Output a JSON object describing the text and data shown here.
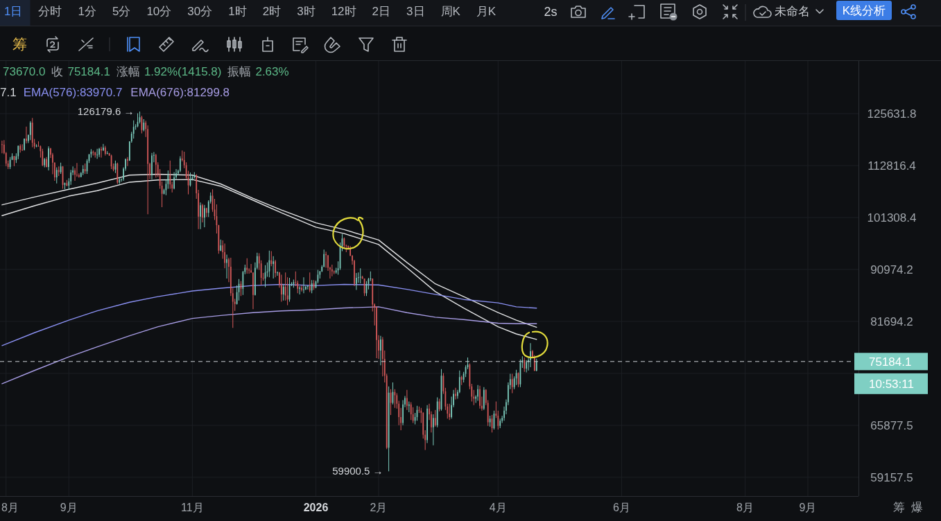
{
  "chart_data": {
    "type": "candlestick",
    "xlim": [
      "2025-07-29",
      "2026-09-26"
    ],
    "ylim": [
      56900,
      140100
    ],
    "log": "y",
    "grid": true,
    "legend": "top left",
    "xticks": [
      {
        "value": "2025-08-01",
        "label": "8月"
      },
      {
        "value": "2025-09-01",
        "label": "9月"
      },
      {
        "value": "2025-11-01",
        "label": "11月"
      },
      {
        "value": "2026-01-01",
        "label": "2026"
      },
      {
        "value": "2026-02-01",
        "label": "2月"
      },
      {
        "value": "2026-04-01",
        "label": "4月"
      },
      {
        "value": "2026-06-01",
        "label": "6月"
      },
      {
        "value": "2026-08-01",
        "label": "8月"
      },
      {
        "value": "2026-09-01",
        "label": "9月"
      }
    ],
    "yticks": [
      59157.5,
      65877.5,
      {
        "value": 73361.3,
        "label": null
      },
      81694.2,
      90974.2,
      101308.4,
      112816.4,
      125631.8
    ],
    "x": [
      "2025-07-30",
      "2025-07-31",
      "2025-08-01",
      "2025-08-02",
      "2025-08-03",
      "2025-08-04",
      "2025-08-05",
      "2025-08-06",
      "2025-08-07",
      "2025-08-08",
      "2025-08-09",
      "2025-08-10",
      "2025-08-11",
      "2025-08-12",
      "2025-08-13",
      "2025-08-14",
      "2025-08-15",
      "2025-08-16",
      "2025-08-17",
      "2025-08-18",
      "2025-08-19",
      "2025-08-20",
      "2025-08-21",
      "2025-08-22",
      "2025-08-23",
      "2025-08-24",
      "2025-08-25",
      "2025-08-26",
      "2025-08-27",
      "2025-08-28",
      "2025-08-29",
      "2025-08-30",
      "2025-08-31",
      "2025-09-01",
      "2025-09-02",
      "2025-09-03",
      "2025-09-04",
      "2025-09-05",
      "2025-09-06",
      "2025-09-07",
      "2025-09-08",
      "2025-09-09",
      "2025-09-10",
      "2025-09-11",
      "2025-09-12",
      "2025-09-13",
      "2025-09-14",
      "2025-09-15",
      "2025-09-16",
      "2025-09-17",
      "2025-09-18",
      "2025-09-19",
      "2025-09-20",
      "2025-09-21",
      "2025-09-22",
      "2025-09-23",
      "2025-09-24",
      "2025-09-25",
      "2025-09-26",
      "2025-09-27",
      "2025-09-28",
      "2025-09-29",
      "2025-09-30",
      "2025-10-01",
      "2025-10-02",
      "2025-10-03",
      "2025-10-04",
      "2025-10-05",
      "2025-10-06",
      "2025-10-07",
      "2025-10-08",
      "2025-10-09",
      "2025-10-10",
      "2025-10-11",
      "2025-10-12",
      "2025-10-13",
      "2025-10-14",
      "2025-10-15",
      "2025-10-16",
      "2025-10-17",
      "2025-10-18",
      "2025-10-19",
      "2025-10-20",
      "2025-10-21",
      "2025-10-22",
      "2025-10-23",
      "2025-10-24",
      "2025-10-25",
      "2025-10-26",
      "2025-10-27",
      "2025-10-28",
      "2025-10-29",
      "2025-10-30",
      "2025-10-31",
      "2025-11-01",
      "2025-11-02",
      "2025-11-03",
      "2025-11-04",
      "2025-11-05",
      "2025-11-06",
      "2025-11-07",
      "2025-11-08",
      "2025-11-09",
      "2025-11-10",
      "2025-11-11",
      "2025-11-12",
      "2025-11-13",
      "2025-11-14",
      "2025-11-15",
      "2025-11-16",
      "2025-11-17",
      "2025-11-18",
      "2025-11-19",
      "2025-11-20",
      "2025-11-21",
      "2025-11-22",
      "2025-11-23",
      "2025-11-24",
      "2025-11-25",
      "2025-11-26",
      "2025-11-27",
      "2025-11-28",
      "2025-11-29",
      "2025-11-30",
      "2025-12-01",
      "2025-12-02",
      "2025-12-03",
      "2025-12-04",
      "2025-12-05",
      "2025-12-06",
      "2025-12-07",
      "2025-12-08",
      "2025-12-09",
      "2025-12-10",
      "2025-12-11",
      "2025-12-12",
      "2025-12-13",
      "2025-12-14",
      "2025-12-15",
      "2025-12-16",
      "2025-12-17",
      "2025-12-18",
      "2025-12-19",
      "2025-12-20",
      "2025-12-21",
      "2025-12-22",
      "2025-12-23",
      "2025-12-24",
      "2025-12-25",
      "2025-12-26",
      "2025-12-27",
      "2025-12-28",
      "2025-12-29",
      "2025-12-30",
      "2025-12-31",
      "2026-01-01",
      "2026-01-02",
      "2026-01-03",
      "2026-01-04",
      "2026-01-05",
      "2026-01-06",
      "2026-01-07",
      "2026-01-08",
      "2026-01-09",
      "2026-01-10",
      "2026-01-11",
      "2026-01-12",
      "2026-01-13",
      "2026-01-14",
      "2026-01-15",
      "2026-01-16",
      "2026-01-17",
      "2026-01-18",
      "2026-01-19",
      "2026-01-20",
      "2026-01-21",
      "2026-01-22",
      "2026-01-23",
      "2026-01-24",
      "2026-01-25",
      "2026-01-26",
      "2026-01-27",
      "2026-01-28",
      "2026-01-29",
      "2026-01-30",
      "2026-01-31",
      "2026-02-01",
      "2026-02-02",
      "2026-02-03",
      "2026-02-04",
      "2026-02-05",
      "2026-02-06",
      "2026-02-07",
      "2026-02-08",
      "2026-02-09",
      "2026-02-10",
      "2026-02-11",
      "2026-02-12",
      "2026-02-13",
      "2026-02-14",
      "2026-02-15",
      "2026-02-16",
      "2026-02-17",
      "2026-02-18",
      "2026-02-19",
      "2026-02-20",
      "2026-02-21",
      "2026-02-22",
      "2026-02-23",
      "2026-02-24",
      "2026-02-25",
      "2026-02-26",
      "2026-02-27",
      "2026-02-28",
      "2026-03-01",
      "2026-03-02",
      "2026-03-03",
      "2026-03-04",
      "2026-03-05",
      "2026-03-06",
      "2026-03-07",
      "2026-03-08",
      "2026-03-09",
      "2026-03-10",
      "2026-03-11",
      "2026-03-12",
      "2026-03-13",
      "2026-03-14",
      "2026-03-15",
      "2026-03-16",
      "2026-03-17",
      "2026-03-18",
      "2026-03-19",
      "2026-03-20",
      "2026-03-21",
      "2026-03-22",
      "2026-03-23",
      "2026-03-24",
      "2026-03-25",
      "2026-03-26",
      "2026-03-27",
      "2026-03-28",
      "2026-03-29",
      "2026-03-30",
      "2026-03-31",
      "2026-04-01",
      "2026-04-02",
      "2026-04-03",
      "2026-04-04",
      "2026-04-05",
      "2026-04-06",
      "2026-04-07",
      "2026-04-08",
      "2026-04-09",
      "2026-04-10",
      "2026-04-11",
      "2026-04-12",
      "2026-04-13",
      "2026-04-14",
      "2026-04-15",
      "2026-04-16",
      "2026-04-17",
      "2026-04-18",
      "2026-04-19",
      "2026-04-20"
    ],
    "ohlc": [
      [
        117900,
        118800,
        115700,
        117800
      ],
      [
        117800,
        118900,
        115500,
        115800
      ],
      [
        115800,
        116000,
        112700,
        113300
      ],
      [
        113300,
        114000,
        112000,
        112500
      ],
      [
        112500,
        114800,
        112000,
        114200
      ],
      [
        114200,
        115700,
        114100,
        115000
      ],
      [
        115000,
        115100,
        112700,
        114100
      ],
      [
        114100,
        115700,
        113400,
        115000
      ],
      [
        115000,
        117600,
        114300,
        117500
      ],
      [
        117500,
        117900,
        115900,
        116600
      ],
      [
        116600,
        117900,
        116300,
        116500
      ],
      [
        116500,
        119300,
        116400,
        119300
      ],
      [
        119300,
        122300,
        118100,
        118700
      ],
      [
        118700,
        120300,
        118200,
        120200
      ],
      [
        120200,
        123700,
        118900,
        123300
      ],
      [
        123300,
        124500,
        117200,
        118300
      ],
      [
        118300,
        119200,
        116800,
        117400
      ],
      [
        117400,
        117900,
        117200,
        117500
      ],
      [
        117500,
        118600,
        117300,
        117400
      ],
      [
        117400,
        117600,
        114700,
        116200
      ],
      [
        116200,
        116800,
        112700,
        112900
      ],
      [
        112900,
        114600,
        112400,
        114300
      ],
      [
        114300,
        114800,
        112400,
        112500
      ],
      [
        112500,
        117400,
        111700,
        116900
      ],
      [
        116900,
        117000,
        114600,
        115400
      ],
      [
        115400,
        115800,
        110800,
        113500
      ],
      [
        113500,
        113600,
        109300,
        110100
      ],
      [
        110100,
        112400,
        108700,
        111800
      ],
      [
        111800,
        112600,
        110400,
        111300
      ],
      [
        111300,
        113500,
        110900,
        112600
      ],
      [
        112600,
        112700,
        107500,
        108400
      ],
      [
        108400,
        108900,
        107400,
        108800
      ],
      [
        108800,
        109500,
        108100,
        108200
      ],
      [
        108200,
        109900,
        107300,
        109200
      ],
      [
        109200,
        111800,
        108400,
        111200
      ],
      [
        111200,
        112600,
        110600,
        111700
      ],
      [
        111700,
        112200,
        109300,
        110700
      ],
      [
        110700,
        113400,
        110200,
        110600
      ],
      [
        110600,
        111000,
        110000,
        110200
      ],
      [
        110200,
        111300,
        110100,
        111100
      ],
      [
        111100,
        112900,
        110600,
        112000
      ],
      [
        112000,
        113300,
        110900,
        111500
      ],
      [
        111500,
        114300,
        110900,
        113900
      ],
      [
        113900,
        115500,
        113400,
        115500
      ],
      [
        115500,
        116700,
        114700,
        116100
      ],
      [
        116100,
        116400,
        115200,
        115900
      ],
      [
        115900,
        116100,
        114700,
        115300
      ],
      [
        115300,
        116800,
        114400,
        115400
      ],
      [
        115400,
        117000,
        114800,
        116800
      ],
      [
        116800,
        117300,
        114700,
        116400
      ],
      [
        116400,
        118000,
        116300,
        117100
      ],
      [
        117100,
        117500,
        115200,
        115600
      ],
      [
        115600,
        116200,
        115500,
        115700
      ],
      [
        115700,
        115800,
        115100,
        115200
      ],
      [
        115200,
        115400,
        112000,
        112600
      ],
      [
        112600,
        113300,
        111500,
        111900
      ],
      [
        111900,
        114000,
        111100,
        113300
      ],
      [
        113300,
        113500,
        108600,
        108900
      ],
      [
        108900,
        110000,
        108600,
        109600
      ],
      [
        109600,
        109800,
        109100,
        109700
      ],
      [
        109700,
        112400,
        109300,
        112100
      ],
      [
        112100,
        114500,
        111600,
        114300
      ],
      [
        114300,
        114800,
        112700,
        114000
      ],
      [
        114000,
        118600,
        113900,
        118600
      ],
      [
        118600,
        121000,
        118300,
        120500
      ],
      [
        120500,
        123900,
        119300,
        122200
      ],
      [
        122200,
        122900,
        121500,
        122400
      ],
      [
        122400,
        125700,
        122100,
        123500
      ],
      [
        123500,
        126179.6,
        123100,
        124700
      ],
      [
        124700,
        125100,
        120600,
        121400
      ],
      [
        121400,
        124200,
        121100,
        123300
      ],
      [
        123300,
        123800,
        119700,
        121700
      ],
      [
        121700,
        122600,
        102000,
        113200
      ],
      [
        113200,
        113500,
        109700,
        110600
      ],
      [
        110600,
        115800,
        109600,
        115200
      ],
      [
        115200,
        116000,
        113600,
        115300
      ],
      [
        115300,
        115600,
        110000,
        113000
      ],
      [
        113000,
        113600,
        110200,
        110800
      ],
      [
        110800,
        112000,
        107500,
        108200
      ],
      [
        108200,
        109200,
        103500,
        106400
      ],
      [
        106400,
        107500,
        106300,
        107200
      ],
      [
        107200,
        109500,
        106100,
        108600
      ],
      [
        108600,
        111700,
        107500,
        110600
      ],
      [
        110600,
        114000,
        107500,
        108500
      ],
      [
        108500,
        109100,
        106700,
        107600
      ],
      [
        107600,
        111300,
        107400,
        110100
      ],
      [
        110100,
        112000,
        109700,
        111000
      ],
      [
        111000,
        111900,
        110600,
        111600
      ],
      [
        111600,
        115000,
        111300,
        114500
      ],
      [
        114500,
        116400,
        113800,
        114100
      ],
      [
        114100,
        116100,
        112200,
        112900
      ],
      [
        112900,
        113600,
        109700,
        110000
      ],
      [
        110000,
        111600,
        106300,
        108300
      ],
      [
        108300,
        111200,
        108000,
        109600
      ],
      [
        109600,
        110600,
        109400,
        110100
      ],
      [
        110100,
        111300,
        109800,
        110600
      ],
      [
        110600,
        110800,
        105300,
        106500
      ],
      [
        106500,
        107300,
        98900,
        101500
      ],
      [
        101500,
        104500,
        98900,
        103900
      ],
      [
        103900,
        104200,
        100300,
        101300
      ],
      [
        101300,
        104000,
        99300,
        103300
      ],
      [
        103300,
        103400,
        101400,
        102300
      ],
      [
        102300,
        105000,
        101400,
        104700
      ],
      [
        104700,
        106700,
        104300,
        106000
      ],
      [
        106000,
        107400,
        102500,
        103000
      ],
      [
        103000,
        105300,
        100800,
        101600
      ],
      [
        101600,
        104100,
        98000,
        99700
      ],
      [
        99700,
        99800,
        94000,
        94600
      ],
      [
        94600,
        96800,
        94500,
        95600
      ],
      [
        95600,
        96600,
        93000,
        94300
      ],
      [
        94300,
        96000,
        91200,
        92200
      ],
      [
        92200,
        93800,
        89300,
        92900
      ],
      [
        92900,
        93200,
        88600,
        91500
      ],
      [
        91500,
        93200,
        86100,
        86600
      ],
      [
        86600,
        87500,
        80600,
        85100
      ],
      [
        85100,
        85600,
        83500,
        84700
      ],
      [
        84700,
        88000,
        84600,
        86800
      ],
      [
        86800,
        89200,
        85300,
        88300
      ],
      [
        88300,
        88800,
        86100,
        87400
      ],
      [
        87400,
        90700,
        86300,
        90500
      ],
      [
        90500,
        91900,
        90100,
        91300
      ],
      [
        91300,
        93100,
        90200,
        90900
      ],
      [
        90900,
        91200,
        90200,
        90800
      ],
      [
        90800,
        92000,
        90300,
        90400
      ],
      [
        90400,
        90400,
        83800,
        86300
      ],
      [
        86300,
        92300,
        86200,
        91300
      ],
      [
        91300,
        94200,
        91000,
        93500
      ],
      [
        93500,
        94100,
        90900,
        92100
      ],
      [
        92100,
        92700,
        88100,
        89400
      ],
      [
        89400,
        90300,
        88900,
        89300
      ],
      [
        89300,
        91800,
        87700,
        90400
      ],
      [
        90400,
        92300,
        89600,
        90600
      ],
      [
        90600,
        94600,
        89500,
        92700
      ],
      [
        92700,
        94500,
        91600,
        92000
      ],
      [
        92000,
        93500,
        89300,
        92500
      ],
      [
        92500,
        92800,
        89500,
        90300
      ],
      [
        90300,
        90600,
        89800,
        90400
      ],
      [
        90400,
        90500,
        87600,
        88200
      ],
      [
        88200,
        90000,
        85100,
        86400
      ],
      [
        86400,
        88200,
        85300,
        87800
      ],
      [
        87800,
        90400,
        85300,
        86200
      ],
      [
        86200,
        89500,
        84500,
        85500
      ],
      [
        85500,
        89400,
        85100,
        88100
      ],
      [
        88100,
        88600,
        87900,
        88300
      ],
      [
        88300,
        89100,
        87600,
        88600
      ],
      [
        88600,
        90600,
        87900,
        88500
      ],
      [
        88500,
        88900,
        86600,
        87400
      ],
      [
        87400,
        87900,
        86400,
        87600
      ],
      [
        87600,
        88000,
        86900,
        87200
      ],
      [
        87200,
        89500,
        86600,
        87300
      ],
      [
        87300,
        87900,
        87200,
        87800
      ],
      [
        87800,
        88000,
        87300,
        87900
      ],
      [
        87900,
        90400,
        86800,
        87100
      ],
      [
        87100,
        89000,
        86600,
        88400
      ],
      [
        88400,
        89000,
        87200,
        87600
      ],
      [
        87600,
        88900,
        87500,
        88700
      ],
      [
        88700,
        90900,
        88400,
        90000
      ],
      [
        90000,
        90700,
        89300,
        90600
      ],
      [
        90600,
        91800,
        90500,
        91500
      ],
      [
        91500,
        94800,
        91400,
        93900
      ],
      [
        93900,
        94400,
        91300,
        93700
      ],
      [
        93700,
        93700,
        90700,
        91300
      ],
      [
        91300,
        91500,
        89300,
        91000
      ],
      [
        91000,
        91900,
        89700,
        90600
      ],
      [
        90600,
        90800,
        90100,
        90400
      ],
      [
        90400,
        91300,
        90200,
        90800
      ],
      [
        90800,
        92500,
        90000,
        91200
      ],
      [
        91200,
        96200,
        90900,
        95400
      ],
      [
        95400,
        97900,
        94500,
        97000
      ],
      [
        97000,
        97200,
        95100,
        95600
      ],
      [
        95600,
        95800,
        94300,
        95500
      ],
      [
        95500,
        95600,
        94900,
        95100
      ],
      [
        95100,
        95500,
        93500,
        93600
      ],
      [
        93600,
        93700,
        91900,
        92600
      ],
      [
        92600,
        92800,
        87900,
        88300
      ],
      [
        88300,
        90300,
        87200,
        89400
      ],
      [
        89400,
        90400,
        88500,
        89500
      ],
      [
        89500,
        91200,
        88400,
        89600
      ],
      [
        89600,
        89800,
        89200,
        89300
      ],
      [
        89300,
        89300,
        86100,
        86600
      ],
      [
        86600,
        88800,
        86100,
        88300
      ],
      [
        88300,
        89400,
        87300,
        89200
      ],
      [
        89200,
        90600,
        88800,
        89300
      ],
      [
        89300,
        89300,
        83400,
        84600
      ],
      [
        84600,
        84800,
        81000,
        84100
      ],
      [
        84100,
        84300,
        75700,
        78600
      ],
      [
        78600,
        79400,
        75600,
        76900
      ],
      [
        76900,
        79300,
        74600,
        78700
      ],
      [
        78700,
        79100,
        72900,
        75600
      ],
      [
        75600,
        76900,
        72000,
        73000
      ],
      [
        73000,
        73300,
        62700,
        62900
      ],
      [
        62900,
        71400,
        59900.5,
        70500
      ],
      [
        70500,
        71000,
        67300,
        69000
      ],
      [
        69000,
        72000,
        68800,
        70600
      ],
      [
        70600,
        71000,
        68300,
        70100
      ],
      [
        70100,
        70400,
        68200,
        68900
      ],
      [
        68900,
        69300,
        65900,
        67000
      ],
      [
        67000,
        68300,
        65200,
        66200
      ],
      [
        66200,
        69400,
        65900,
        68800
      ],
      [
        68800,
        70000,
        68400,
        69700
      ],
      [
        69700,
        70900,
        68000,
        68600
      ],
      [
        68600,
        69200,
        67700,
        68800
      ],
      [
        68800,
        69100,
        66600,
        67400
      ],
      [
        67400,
        68400,
        66200,
        66500
      ],
      [
        66500,
        67600,
        66000,
        67000
      ],
      [
        67000,
        68600,
        66500,
        68000
      ],
      [
        68000,
        68500,
        67600,
        67900
      ],
      [
        67900,
        68300,
        66200,
        67600
      ],
      [
        67600,
        67700,
        64100,
        64600
      ],
      [
        64600,
        65200,
        62600,
        63900
      ],
      [
        63900,
        68700,
        63500,
        68200
      ],
      [
        68200,
        68900,
        66600,
        67400
      ],
      [
        67400,
        67800,
        64900,
        65600
      ],
      [
        65600,
        67400,
        63200,
        66900
      ],
      [
        66900,
        68000,
        65700,
        65900
      ],
      [
        65900,
        69800,
        65600,
        69200
      ],
      [
        69200,
        69600,
        67800,
        68100
      ],
      [
        68100,
        74000,
        67900,
        73000
      ],
      [
        73000,
        73400,
        70300,
        70700
      ],
      [
        70700,
        71200,
        68000,
        68500
      ],
      [
        68500,
        68900,
        66800,
        67500
      ],
      [
        67500,
        68900,
        66600,
        67000
      ],
      [
        67000,
        69900,
        66800,
        68700
      ],
      [
        68700,
        70900,
        68400,
        70300
      ],
      [
        70300,
        71200,
        69500,
        70000
      ],
      [
        70000,
        70900,
        69600,
        70600
      ],
      [
        70600,
        73800,
        70400,
        72800
      ],
      [
        72800,
        73000,
        71600,
        72400
      ],
      [
        72400,
        73600,
        72000,
        73300
      ],
      [
        73300,
        74600,
        72800,
        74300
      ],
      [
        74300,
        75800,
        74000,
        74700
      ],
      [
        74700,
        74900,
        71000,
        71400
      ],
      [
        71400,
        71800,
        69200,
        69900
      ],
      [
        69900,
        70900,
        68700,
        69600
      ],
      [
        69600,
        70100,
        69000,
        69900
      ],
      [
        69900,
        71600,
        69300,
        71000
      ],
      [
        71000,
        71500,
        68200,
        68600
      ],
      [
        68600,
        69900,
        67900,
        68200
      ],
      [
        68200,
        71300,
        68000,
        70900
      ],
      [
        70900,
        71000,
        68700,
        69000
      ],
      [
        69000,
        69400,
        65800,
        66300
      ],
      [
        66300,
        67200,
        65700,
        66800
      ],
      [
        66800,
        67300,
        64900,
        65500
      ],
      [
        65500,
        67900,
        65300,
        67500
      ],
      [
        67500,
        69200,
        66900,
        67200
      ],
      [
        67200,
        67900,
        65300,
        65800
      ],
      [
        65800,
        66800,
        65500,
        66500
      ],
      [
        66500,
        67200,
        66200,
        66900
      ],
      [
        66900,
        68500,
        66500,
        67900
      ],
      [
        67900,
        69500,
        67400,
        69100
      ],
      [
        69100,
        72000,
        68700,
        71600
      ],
      [
        71600,
        73300,
        71000,
        72500
      ],
      [
        72500,
        73300,
        70400,
        71300
      ],
      [
        71300,
        72900,
        71000,
        72600
      ],
      [
        72600,
        73900,
        71600,
        73400
      ],
      [
        73400,
        73500,
        71300,
        71700
      ],
      [
        71700,
        75500,
        71300,
        75000
      ],
      [
        75000,
        76000,
        74200,
        75400
      ],
      [
        75400,
        75800,
        73600,
        74100
      ],
      [
        74100,
        75400,
        73500,
        75100
      ],
      [
        75100,
        75800,
        73800,
        75400
      ],
      [
        75400,
        78100,
        74300,
        76800
      ],
      [
        76800,
        77000,
        75700,
        75900
      ],
      [
        75900,
        76200,
        73700,
        73768.3
      ],
      [
        73768.3,
        75610,
        73670,
        75184.1
      ]
    ],
    "colors": [
      "#d75a5a",
      "#d75a5a",
      "#d75a5a",
      "#d75a5a",
      "#7dcdbe",
      "#7dcdbe",
      "#d75a5a",
      "#7dcdbe",
      "#7dcdbe",
      "#d75a5a",
      "#d75a5a",
      "#7dcdbe",
      "#d75a5a",
      "#7dcdbe",
      "#7dcdbe",
      "#d75a5a",
      "#d75a5a",
      "#7dcdbe",
      "#d75a5a",
      "#d75a5a",
      "#d75a5a",
      "#7dcdbe",
      "#d75a5a",
      "#7dcdbe",
      "#d75a5a",
      "#d75a5a",
      "#d75a5a",
      "#7dcdbe",
      "#d75a5a",
      "#7dcdbe",
      "#d75a5a",
      "#7dcdbe",
      "#d75a5a",
      "#7dcdbe",
      "#7dcdbe",
      "#7dcdbe",
      "#d75a5a",
      "#d75a5a",
      "#d75a5a",
      "#7dcdbe",
      "#7dcdbe",
      "#d75a5a",
      "#7dcdbe",
      "#7dcdbe",
      "#7dcdbe",
      "#d75a5a",
      "#d75a5a",
      "#7dcdbe",
      "#7dcdbe",
      "#d75a5a",
      "#7dcdbe",
      "#d75a5a",
      "#7dcdbe",
      "#d75a5a",
      "#d75a5a",
      "#d75a5a",
      "#7dcdbe",
      "#d75a5a",
      "#7dcdbe",
      "#7dcdbe",
      "#7dcdbe",
      "#7dcdbe",
      "#d75a5a",
      "#7dcdbe",
      "#7dcdbe",
      "#7dcdbe",
      "#7dcdbe",
      "#7dcdbe",
      "#7dcdbe",
      "#d75a5a",
      "#7dcdbe",
      "#d75a5a",
      "#d75a5a",
      "#d75a5a",
      "#7dcdbe",
      "#7dcdbe",
      "#d75a5a",
      "#d75a5a",
      "#d75a5a",
      "#d75a5a",
      "#7dcdbe",
      "#7dcdbe",
      "#7dcdbe",
      "#d75a5a",
      "#d75a5a",
      "#7dcdbe",
      "#7dcdbe",
      "#7dcdbe",
      "#7dcdbe",
      "#d75a5a",
      "#d75a5a",
      "#d75a5a",
      "#d75a5a",
      "#7dcdbe",
      "#7dcdbe",
      "#7dcdbe",
      "#d75a5a",
      "#d75a5a",
      "#7dcdbe",
      "#d75a5a",
      "#7dcdbe",
      "#d75a5a",
      "#7dcdbe",
      "#7dcdbe",
      "#d75a5a",
      "#d75a5a",
      "#d75a5a",
      "#d75a5a",
      "#7dcdbe",
      "#d75a5a",
      "#d75a5a",
      "#7dcdbe",
      "#d75a5a",
      "#d75a5a",
      "#d75a5a",
      "#d75a5a",
      "#7dcdbe",
      "#7dcdbe",
      "#d75a5a",
      "#7dcdbe",
      "#7dcdbe",
      "#d75a5a",
      "#d75a5a",
      "#d75a5a",
      "#d75a5a",
      "#7dcdbe",
      "#7dcdbe",
      "#d75a5a",
      "#d75a5a",
      "#d75a5a",
      "#7dcdbe",
      "#7dcdbe",
      "#7dcdbe",
      "#d75a5a",
      "#7dcdbe",
      "#d75a5a",
      "#7dcdbe",
      "#d75a5a",
      "#d75a5a",
      "#7dcdbe",
      "#d75a5a",
      "#d75a5a",
      "#7dcdbe",
      "#7dcdbe",
      "#7dcdbe",
      "#d75a5a",
      "#d75a5a",
      "#7dcdbe",
      "#d75a5a",
      "#7dcdbe",
      "#7dcdbe",
      "#7dcdbe",
      "#d75a5a",
      "#7dcdbe",
      "#d75a5a",
      "#7dcdbe",
      "#7dcdbe",
      "#7dcdbe",
      "#7dcdbe",
      "#7dcdbe",
      "#d75a5a",
      "#d75a5a",
      "#d75a5a",
      "#d75a5a",
      "#d75a5a",
      "#7dcdbe",
      "#7dcdbe",
      "#7dcdbe",
      "#7dcdbe",
      "#d75a5a",
      "#d75a5a",
      "#d75a5a",
      "#d75a5a",
      "#d75a5a",
      "#d75a5a",
      "#7dcdbe",
      "#7dcdbe",
      "#7dcdbe",
      "#d75a5a",
      "#d75a5a",
      "#7dcdbe",
      "#7dcdbe",
      "#7dcdbe",
      "#d75a5a",
      "#d75a5a",
      "#d75a5a",
      "#d75a5a",
      "#7dcdbe",
      "#d75a5a",
      "#d75a5a",
      "#d75a5a",
      "#7dcdbe",
      "#d75a5a",
      "#7dcdbe",
      "#d75a5a",
      "#d75a5a",
      "#d75a5a",
      "#d75a5a",
      "#7dcdbe",
      "#7dcdbe",
      "#d75a5a",
      "#7dcdbe",
      "#d75a5a",
      "#d75a5a",
      "#7dcdbe",
      "#7dcdbe",
      "#d75a5a",
      "#d75a5a",
      "#d75a5a",
      "#d75a5a",
      "#7dcdbe",
      "#d75a5a",
      "#d75a5a",
      "#7dcdbe",
      "#d75a5a",
      "#7dcdbe",
      "#d75a5a",
      "#7dcdbe",
      "#d75a5a",
      "#d75a5a",
      "#d75a5a",
      "#d75a5a",
      "#7dcdbe",
      "#7dcdbe",
      "#d75a5a",
      "#7dcdbe",
      "#7dcdbe",
      "#d75a5a",
      "#7dcdbe",
      "#7dcdbe",
      "#7dcdbe",
      "#d75a5a",
      "#d75a5a",
      "#d75a5a",
      "#7dcdbe",
      "#7dcdbe",
      "#d75a5a",
      "#d75a5a",
      "#7dcdbe",
      "#d75a5a",
      "#d75a5a",
      "#7dcdbe",
      "#d75a5a",
      "#7dcdbe",
      "#d75a5a",
      "#d75a5a",
      "#7dcdbe",
      "#7dcdbe",
      "#7dcdbe",
      "#7dcdbe",
      "#7dcdbe",
      "#7dcdbe",
      "#d75a5a",
      "#7dcdbe",
      "#7dcdbe",
      "#d75a5a",
      "#7dcdbe",
      "#7dcdbe",
      "#d75a5a",
      "#7dcdbe",
      "#7dcdbe",
      "#7dcdbe",
      "#d75a5a",
      "#d75a5a",
      "#7dcdbe"
    ],
    "series": [
      {
        "type": "line",
        "color": "#e2e3e5",
        "x": [
          "2025-07-30",
          "2025-08-15",
          "2025-09-01",
          "2025-09-15",
          "2025-10-01",
          "2025-10-15",
          "2025-11-01",
          "2025-11-15",
          "2025-12-01",
          "2025-12-15",
          "2026-01-01",
          "2026-01-15",
          "2026-02-01",
          "2026-02-15",
          "2026-03-01",
          "2026-03-15",
          "2026-04-01",
          "2026-04-10",
          "2026-04-20"
        ],
        "values": [
          104000,
          105700,
          107400,
          108800,
          110600,
          110800,
          110600,
          108600,
          105400,
          102900,
          100200,
          98800,
          96700,
          92300,
          88300,
          86000,
          83200,
          81900,
          80700
        ]
      },
      {
        "type": "line",
        "color": "#e2e3e5",
        "x": [
          "2025-07-30",
          "2025-08-15",
          "2025-09-01",
          "2025-09-15",
          "2025-10-01",
          "2025-10-15",
          "2025-11-01",
          "2025-11-15",
          "2025-12-01",
          "2025-12-15",
          "2026-01-01",
          "2026-01-15",
          "2026-02-01",
          "2026-02-15",
          "2026-03-01",
          "2026-03-15",
          "2026-04-01",
          "2026-04-10",
          "2026-04-20"
        ],
        "values": [
          101700,
          103800,
          105900,
          107100,
          109000,
          109500,
          109600,
          108100,
          105000,
          102300,
          99300,
          98000,
          95800,
          91300,
          86900,
          84000,
          80800,
          79600,
          78700
        ]
      },
      {
        "type": "line",
        "name": "EMA(576):83970.7",
        "color": "#8a90f2",
        "x": [
          "2025-07-30",
          "2025-08-15",
          "2025-09-01",
          "2025-09-15",
          "2025-10-01",
          "2025-10-15",
          "2025-11-01",
          "2025-11-15",
          "2025-12-01",
          "2025-12-15",
          "2026-01-01",
          "2026-01-15",
          "2026-02-01",
          "2026-02-15",
          "2026-03-01",
          "2026-03-15",
          "2026-04-01",
          "2026-04-10",
          "2026-04-20"
        ],
        "values": [
          77700,
          79800,
          81900,
          83500,
          85000,
          86000,
          87000,
          87500,
          88000,
          88200,
          88000,
          88200,
          88100,
          87300,
          86400,
          85500,
          84900,
          84200,
          83970.7
        ]
      },
      {
        "type": "line",
        "name": "EMA(676):81299.8",
        "color": "#a79ce4",
        "x": [
          "2025-07-30",
          "2025-08-15",
          "2025-09-01",
          "2025-09-15",
          "2025-10-01",
          "2025-10-15",
          "2025-11-01",
          "2025-11-15",
          "2025-12-01",
          "2025-12-15",
          "2026-01-01",
          "2026-01-15",
          "2026-02-01",
          "2026-02-15",
          "2026-03-01",
          "2026-03-15",
          "2026-04-01",
          "2026-04-10",
          "2026-04-20"
        ],
        "values": [
          71800,
          73800,
          75900,
          77500,
          79300,
          80800,
          82200,
          82700,
          83200,
          83500,
          83700,
          84000,
          84200,
          83200,
          82400,
          82000,
          81400,
          81300,
          81299.8
        ]
      }
    ],
    "ref_lines": [
      {
        "axis": "y",
        "value": 75184.1,
        "label": "75184.1",
        "color": "#cdd2d6",
        "line_style": "dashed"
      }
    ],
    "annotations": [
      "1日",
      "分时",
      "1分",
      "5分",
      "10分",
      "30分",
      "1时",
      "2时",
      "3时",
      "12时",
      "2日",
      "3日",
      "周K",
      "月K",
      "2s",
      "未命名",
      "K线分析",
      "筹",
      "73670.0",
      "收",
      "75184.1",
      "涨幅",
      "1.92%(1415.8)",
      "振幅",
      "2.63%",
      "7.1",
      {
        "text": "126179.6 →",
        "x": "2025-10-06",
        "y": 126179.6
      },
      {
        "text": "59900.5 →",
        "x": "2026-02-06",
        "y": 59900.5
      },
      "10:53:11",
      "筹",
      "爆"
    ]
  }
}
